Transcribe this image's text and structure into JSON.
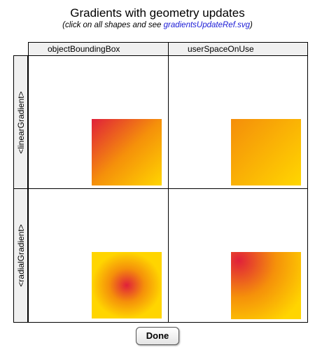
{
  "header": {
    "title": "Gradients with geometry updates",
    "instruction_prefix": "(click on all shapes and see ",
    "instruction_link": "gradientsUpdateRef.svg",
    "instruction_suffix": ")"
  },
  "table": {
    "columns": [
      "objectBoundingBox",
      "userSpaceOnUse"
    ],
    "rows": [
      "<linearGradient>",
      "<radialGradient>"
    ]
  },
  "colors": {
    "gradient_start": "#e0203a",
    "gradient_mid": "#f5900a",
    "gradient_end": "#ffd500",
    "header_bg": "#f0f0f0"
  },
  "controls": {
    "done_label": "Done"
  }
}
